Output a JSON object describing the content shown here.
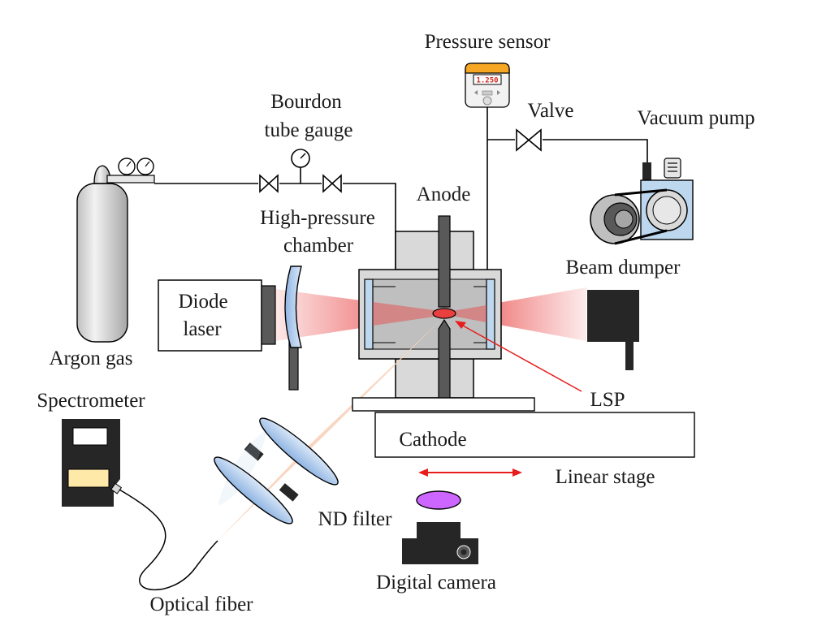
{
  "labels": {
    "pressure_sensor": "Pressure sensor",
    "valve": "Valve",
    "vacuum_pump": "Vacuum pump",
    "bourdon_line1": "Bourdon",
    "bourdon_line2": "tube gauge",
    "anode": "Anode",
    "high_pressure_line1": "High-pressure",
    "high_pressure_line2": "chamber",
    "beam_dumper": "Beam dumper",
    "diode_line1": "Diode",
    "diode_line2": "laser",
    "argon_gas": "Argon gas",
    "spectrometer": "Spectrometer",
    "lsp": "LSP",
    "cathode": "Cathode",
    "linear_stage": "Linear stage",
    "nd_filter": "ND filter",
    "digital_camera": "Digital camera",
    "optical_fiber": "Optical fiber"
  },
  "sensor_display": "1.250",
  "colors": {
    "beam": "#e8403f",
    "chamber": "#d9d9d9",
    "electrode": "#595959",
    "window": "#bdd7ee",
    "collection": "#f6c8a8",
    "nd_filter": "#cc66ff",
    "arrow": "#e81c1c",
    "dark": "#262626",
    "sensor_top": "#f5a623"
  }
}
